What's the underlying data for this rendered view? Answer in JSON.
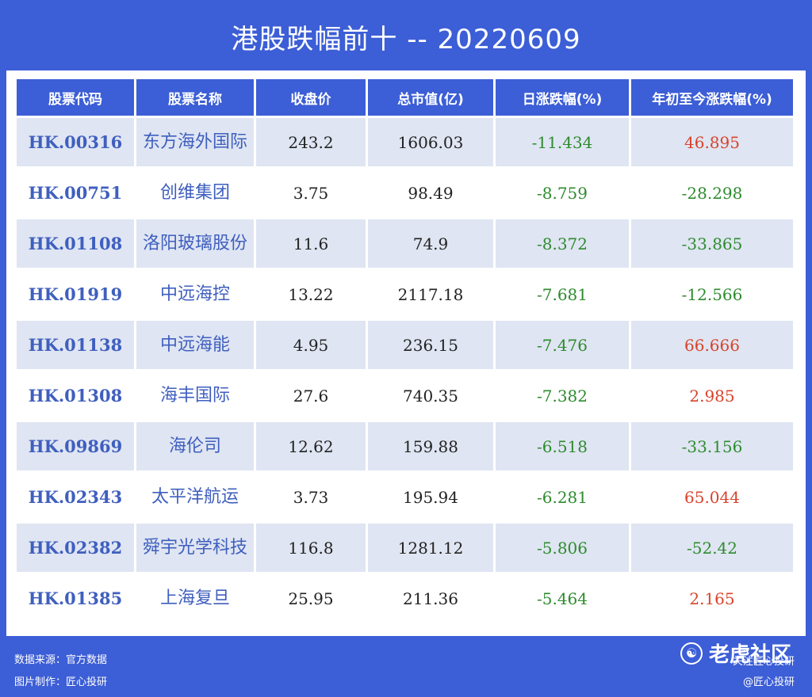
{
  "title": "港股跌幅前十 -- 20220609",
  "table": {
    "headers": [
      "股票代码",
      "股票名称",
      "收盘价",
      "总市值(亿)",
      "日涨跌幅(%)",
      "年初至今涨跌幅(%)"
    ],
    "rows": [
      {
        "code": "HK.00316",
        "name": "东方海外国际",
        "close": "243.2",
        "mcap": "1606.03",
        "day": "-11.434",
        "ytd": "46.895"
      },
      {
        "code": "HK.00751",
        "name": "创维集团",
        "close": "3.75",
        "mcap": "98.49",
        "day": "-8.759",
        "ytd": "-28.298"
      },
      {
        "code": "HK.01108",
        "name": "洛阳玻璃股份",
        "close": "11.6",
        "mcap": "74.9",
        "day": "-8.372",
        "ytd": "-33.865"
      },
      {
        "code": "HK.01919",
        "name": "中远海控",
        "close": "13.22",
        "mcap": "2117.18",
        "day": "-7.681",
        "ytd": "-12.566"
      },
      {
        "code": "HK.01138",
        "name": "中远海能",
        "close": "4.95",
        "mcap": "236.15",
        "day": "-7.476",
        "ytd": "66.666"
      },
      {
        "code": "HK.01308",
        "name": "海丰国际",
        "close": "27.6",
        "mcap": "740.35",
        "day": "-7.382",
        "ytd": "2.985"
      },
      {
        "code": "HK.09869",
        "name": "海伦司",
        "close": "12.62",
        "mcap": "159.88",
        "day": "-6.518",
        "ytd": "-33.156"
      },
      {
        "code": "HK.02343",
        "name": "太平洋航运",
        "close": "3.73",
        "mcap": "195.94",
        "day": "-6.281",
        "ytd": "65.044"
      },
      {
        "code": "HK.02382",
        "name": "舜宇光学科技",
        "close": "116.8",
        "mcap": "1281.12",
        "day": "-5.806",
        "ytd": "-52.42"
      },
      {
        "code": "HK.01385",
        "name": "上海复旦",
        "close": "25.95",
        "mcap": "211.36",
        "day": "-5.464",
        "ytd": "2.165"
      }
    ]
  },
  "footer": {
    "source": "数据来源：官方数据",
    "maker": "图片制作：匠心投研"
  },
  "watermark": {
    "brand": "老虎社区",
    "follow": "关注匠心投研",
    "handle": "@匠心投研"
  },
  "colors": {
    "background": "#3c5ed6",
    "header": "#3c5ed6",
    "row_stripe": "#dfe5f2",
    "negative": "#2e8b2e",
    "positive": "#d9432b",
    "code_text": "#3f5fbf"
  }
}
